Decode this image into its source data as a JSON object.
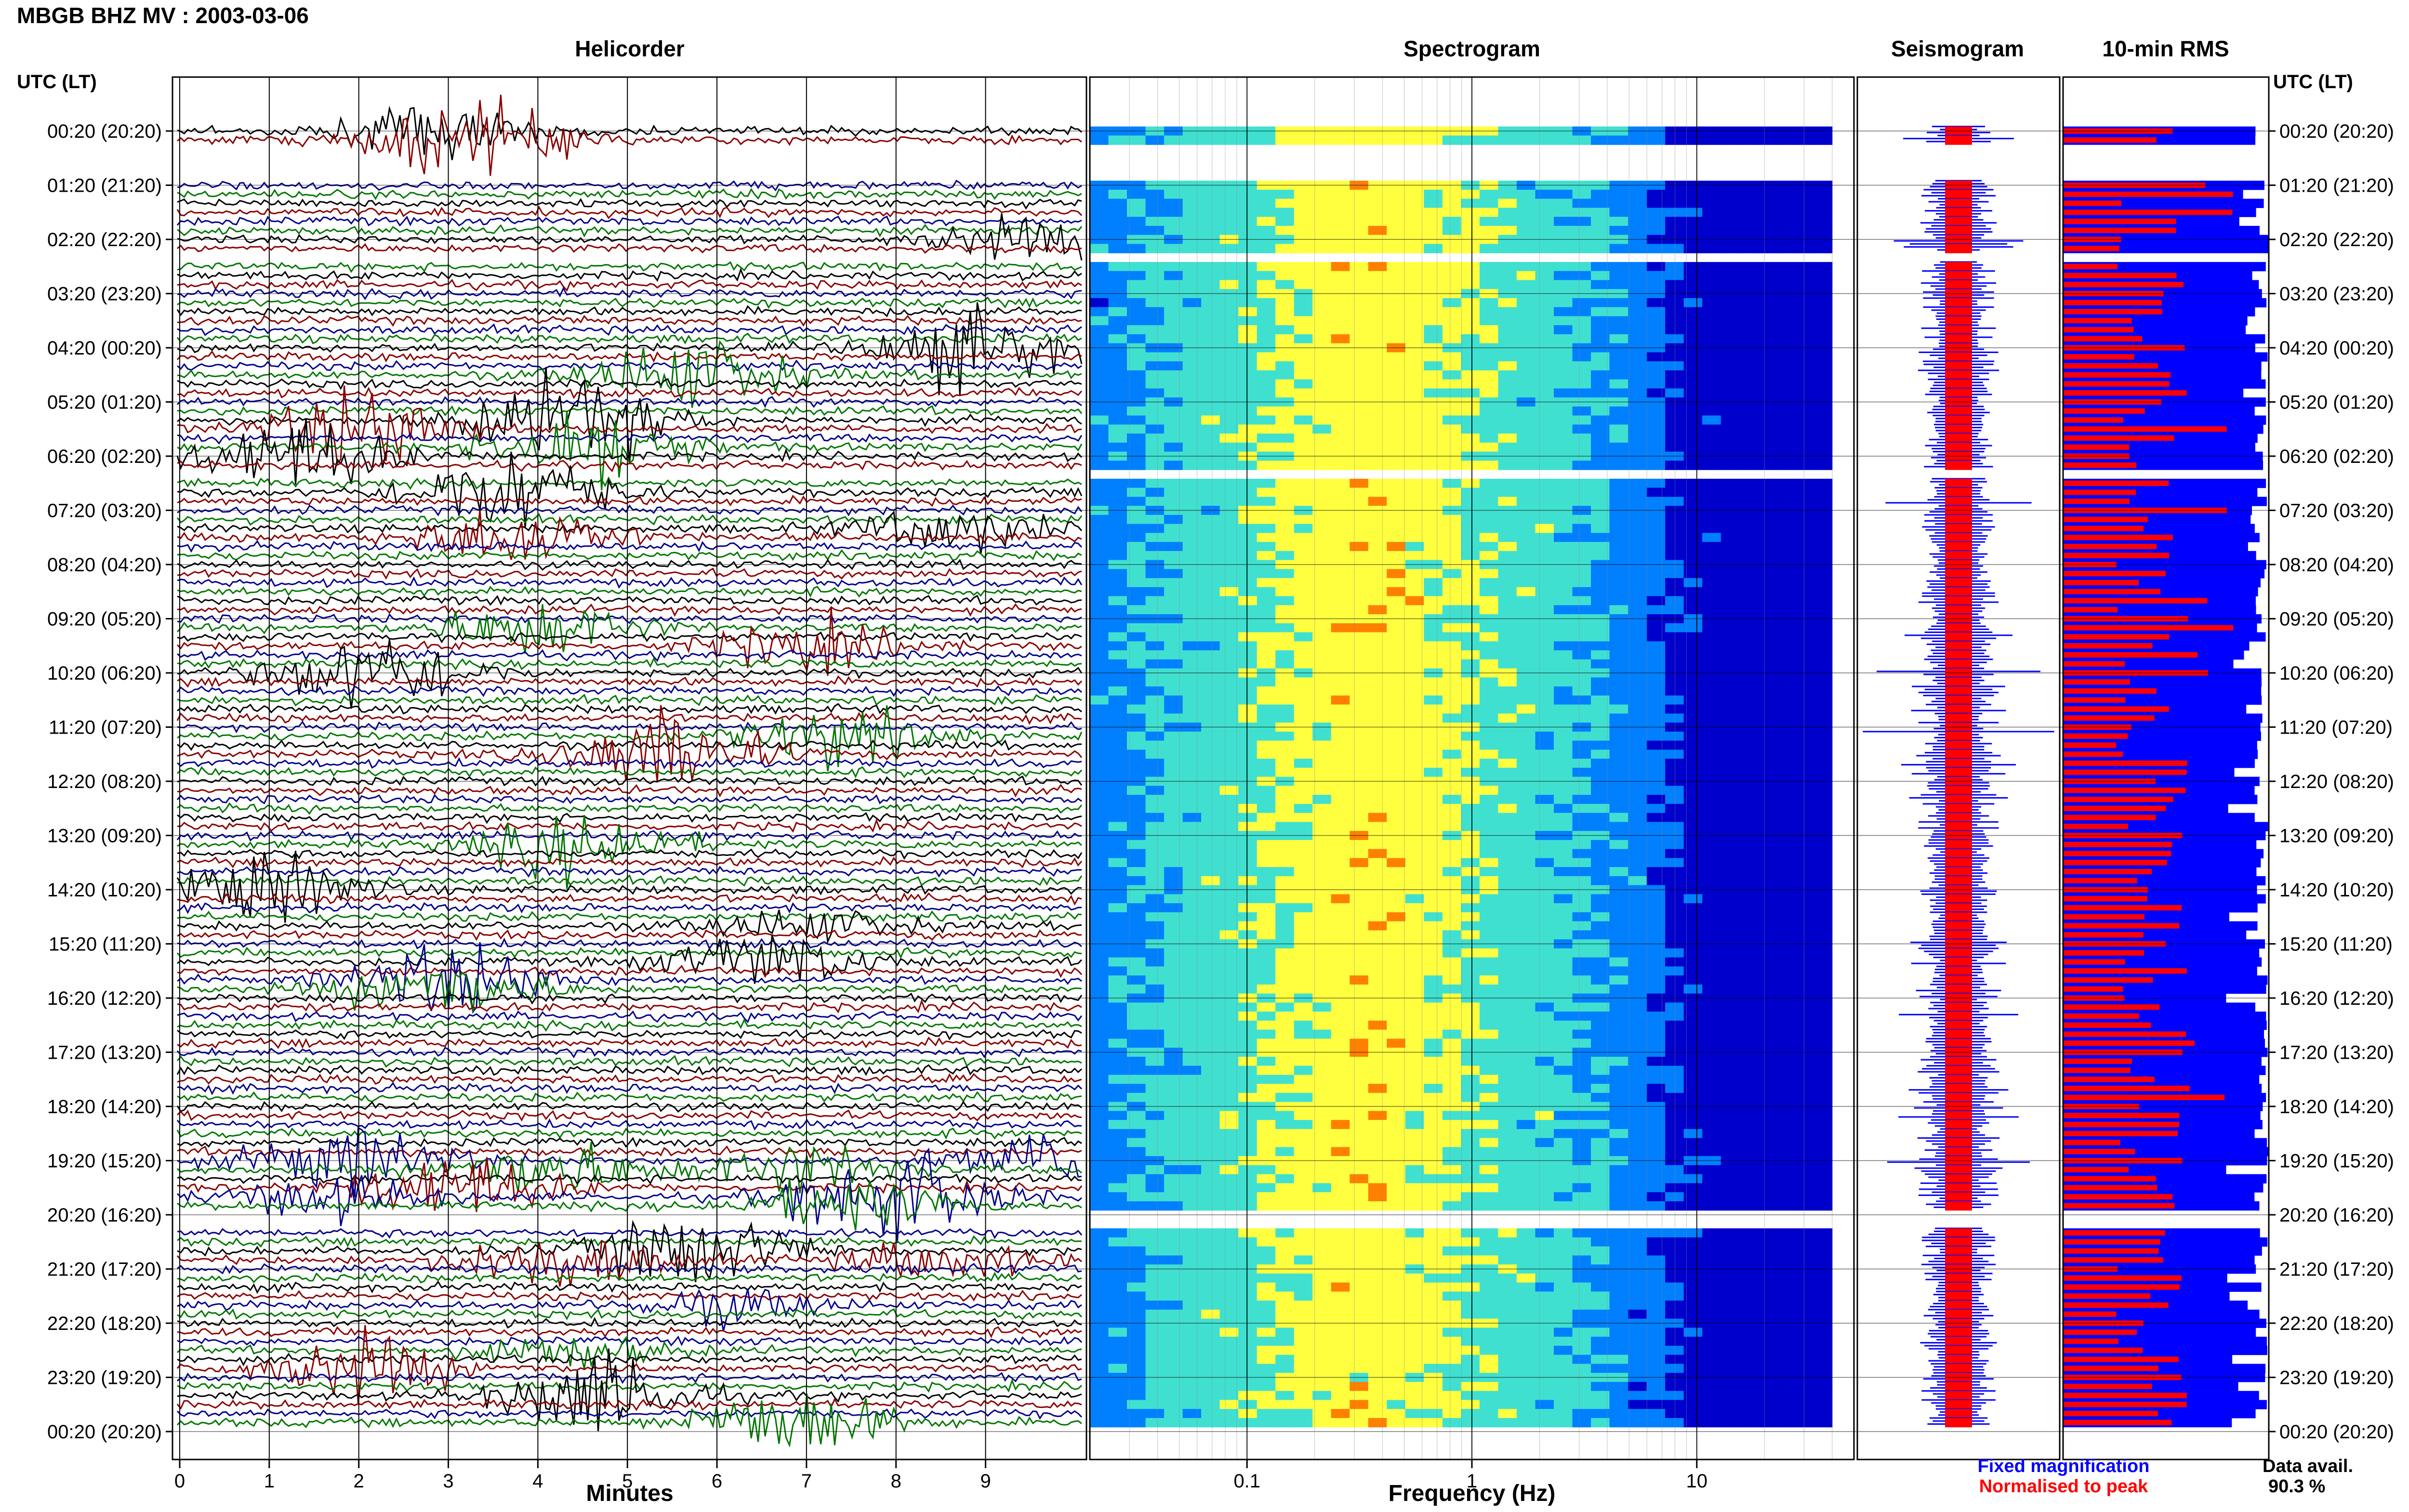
{
  "header": {
    "title": "MBGB BHZ MV : 2003-03-06"
  },
  "panels": {
    "helicorder": "Helicorder",
    "spectrogram": "Spectrogram",
    "seismogram": "Seismogram",
    "rms": "10-min RMS"
  },
  "time_axis_label": "UTC (LT)",
  "time_labels": [
    "00:20 (20:20)",
    "01:20 (21:20)",
    "02:20 (22:20)",
    "03:20 (23:20)",
    "04:20 (00:20)",
    "05:20 (01:20)",
    "06:20 (02:20)",
    "07:20 (03:20)",
    "08:20 (04:20)",
    "09:20 (05:20)",
    "10:20 (06:20)",
    "11:20 (07:20)",
    "12:20 (08:20)",
    "13:20 (09:20)",
    "14:20 (10:20)",
    "15:20 (11:20)",
    "16:20 (12:20)",
    "17:20 (13:20)",
    "18:20 (14:20)",
    "19:20 (15:20)",
    "20:20 (16:20)",
    "21:20 (17:20)",
    "22:20 (18:20)",
    "23:20 (19:20)",
    "00:20 (20:20)"
  ],
  "x_axes": {
    "minutes_label": "Minutes",
    "minutes_ticks": [
      "0",
      "1",
      "2",
      "3",
      "4",
      "5",
      "6",
      "7",
      "8",
      "9"
    ],
    "frequency_label": "Frequency (Hz)",
    "frequency_ticks": [
      "0.1",
      "1",
      "10"
    ]
  },
  "legend": {
    "fixed": "Fixed magnification",
    "normalised": "Normalised to peak",
    "fixed_color": "#0000ff",
    "normalised_color": "#ff0000"
  },
  "availability": {
    "label": "Data avail.",
    "value": "90.3 %"
  },
  "colors": {
    "helicorder_traces": [
      "#000000",
      "#8b0000",
      "#00008b",
      "#007700"
    ],
    "spectrogram_ramp": [
      "#0000cc",
      "#0080ff",
      "#40e0d0",
      "#ffff40",
      "#ff8000",
      "#ff0000"
    ]
  },
  "chart_data": [
    {
      "type": "line",
      "title": "Helicorder",
      "xlabel": "Minutes",
      "xlim": [
        0,
        10
      ],
      "rows_per_hour": 6,
      "hours": 24,
      "data_gaps_hours": [
        [
          0.17,
          1.0
        ],
        [
          2.33,
          2.5
        ],
        [
          6.33,
          6.5
        ],
        [
          20.0,
          20.33
        ]
      ]
    },
    {
      "type": "heatmap",
      "title": "Spectrogram",
      "xlabel": "Frequency (Hz)",
      "x_scale": "log",
      "xlim": [
        0.02,
        50
      ],
      "peak_band_hz": [
        0.2,
        0.6
      ]
    },
    {
      "type": "line",
      "title": "Seismogram",
      "series": [
        {
          "name": "Fixed magnification",
          "color": "#0000ff"
        },
        {
          "name": "Normalised to peak",
          "color": "#ff0000"
        }
      ]
    },
    {
      "type": "bar",
      "title": "10-min RMS",
      "series": [
        {
          "name": "Fixed magnification",
          "color": "#0000ff"
        },
        {
          "name": "Normalised to peak",
          "color": "#ff0000"
        }
      ]
    }
  ]
}
